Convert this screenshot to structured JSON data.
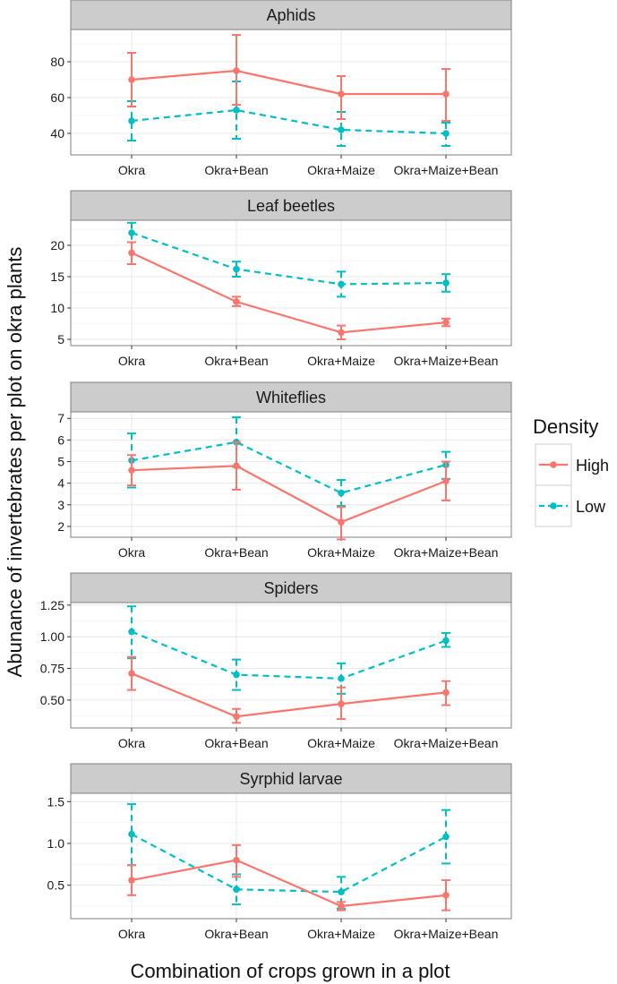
{
  "chart_data": {
    "type": "line",
    "xlabel": "Combination of crops grown in a plot",
    "ylabel": "Abunance of invertebrates per plot on okra plants",
    "categories": [
      "Okra",
      "Okra+Bean",
      "Okra+Maize",
      "Okra+Maize+Bean"
    ],
    "legend": {
      "title": "Density",
      "position": "right",
      "entries": [
        {
          "name": "High",
          "color": "#F8766D",
          "dash": "solid"
        },
        {
          "name": "Low",
          "color": "#00BFC4",
          "dash": "dashed"
        }
      ]
    },
    "grid": true,
    "panels": [
      {
        "title": "Aphids",
        "ylim": [
          28,
          98
        ],
        "yticks": [
          40,
          60,
          80
        ],
        "ytick_labels": [
          "40",
          "60",
          "80"
        ],
        "series": [
          {
            "name": "High",
            "values": [
              70,
              75,
              62,
              62
            ],
            "lower": [
              55,
              56,
              48,
              47
            ],
            "upper": [
              85,
              95,
              72,
              76
            ]
          },
          {
            "name": "Low",
            "values": [
              47,
              53,
              42,
              40
            ],
            "lower": [
              36,
              37,
              33,
              33
            ],
            "upper": [
              58,
              69,
              52,
              46
            ]
          }
        ]
      },
      {
        "title": "Leaf beetles",
        "ylim": [
          4,
          24
        ],
        "yticks": [
          5,
          10,
          15,
          20
        ],
        "ytick_labels": [
          "5",
          "10",
          "15",
          "20"
        ],
        "series": [
          {
            "name": "High",
            "values": [
              18.8,
              11.0,
              6.1,
              7.7
            ],
            "lower": [
              17.0,
              10.3,
              5.0,
              7.1
            ],
            "upper": [
              20.5,
              11.8,
              7.2,
              8.3
            ]
          },
          {
            "name": "Low",
            "values": [
              22.0,
              16.2,
              13.8,
              14.0
            ],
            "lower": [
              20.5,
              15.0,
              11.8,
              12.6
            ],
            "upper": [
              23.6,
              17.4,
              15.8,
              15.4
            ]
          }
        ]
      },
      {
        "title": "Whiteflies",
        "ylim": [
          1.5,
          7.3
        ],
        "yticks": [
          2,
          3,
          4,
          5,
          6,
          7
        ],
        "ytick_labels": [
          "2",
          "3",
          "4",
          "5",
          "6",
          "7"
        ],
        "series": [
          {
            "name": "High",
            "values": [
              4.6,
              4.8,
              2.2,
              4.1
            ],
            "lower": [
              3.9,
              3.7,
              1.4,
              3.2
            ],
            "upper": [
              5.3,
              5.9,
              2.9,
              5.0
            ]
          },
          {
            "name": "Low",
            "values": [
              5.05,
              5.9,
              3.55,
              4.85
            ],
            "lower": [
              3.8,
              4.75,
              2.95,
              4.2
            ],
            "upper": [
              6.3,
              7.05,
              4.15,
              5.45
            ]
          }
        ]
      },
      {
        "title": "Spiders",
        "ylim": [
          0.28,
          1.27
        ],
        "yticks": [
          0.5,
          0.75,
          1.0,
          1.25
        ],
        "ytick_labels": [
          "0.50",
          "0.75",
          "1.00",
          "1.25"
        ],
        "series": [
          {
            "name": "High",
            "values": [
              0.71,
              0.37,
              0.47,
              0.56
            ],
            "lower": [
              0.58,
              0.32,
              0.35,
              0.46
            ],
            "upper": [
              0.84,
              0.43,
              0.6,
              0.65
            ]
          },
          {
            "name": "Low",
            "values": [
              1.04,
              0.7,
              0.67,
              0.97
            ],
            "lower": [
              0.83,
              0.58,
              0.55,
              0.92
            ],
            "upper": [
              1.24,
              0.82,
              0.79,
              1.03
            ]
          }
        ]
      },
      {
        "title": "Syrphid larvae",
        "ylim": [
          0.1,
          1.6
        ],
        "yticks": [
          0.5,
          1.0,
          1.5
        ],
        "ytick_labels": [
          "0.5",
          "1.0",
          "1.5"
        ],
        "series": [
          {
            "name": "High",
            "values": [
              0.56,
              0.8,
              0.25,
              0.38
            ],
            "lower": [
              0.38,
              0.6,
              0.2,
              0.2
            ],
            "upper": [
              0.74,
              0.98,
              0.3,
              0.56
            ]
          },
          {
            "name": "Low",
            "values": [
              1.11,
              0.45,
              0.42,
              1.08
            ],
            "lower": [
              0.74,
              0.27,
              0.22,
              0.76
            ],
            "upper": [
              1.47,
              0.63,
              0.6,
              1.4
            ]
          }
        ]
      }
    ]
  }
}
